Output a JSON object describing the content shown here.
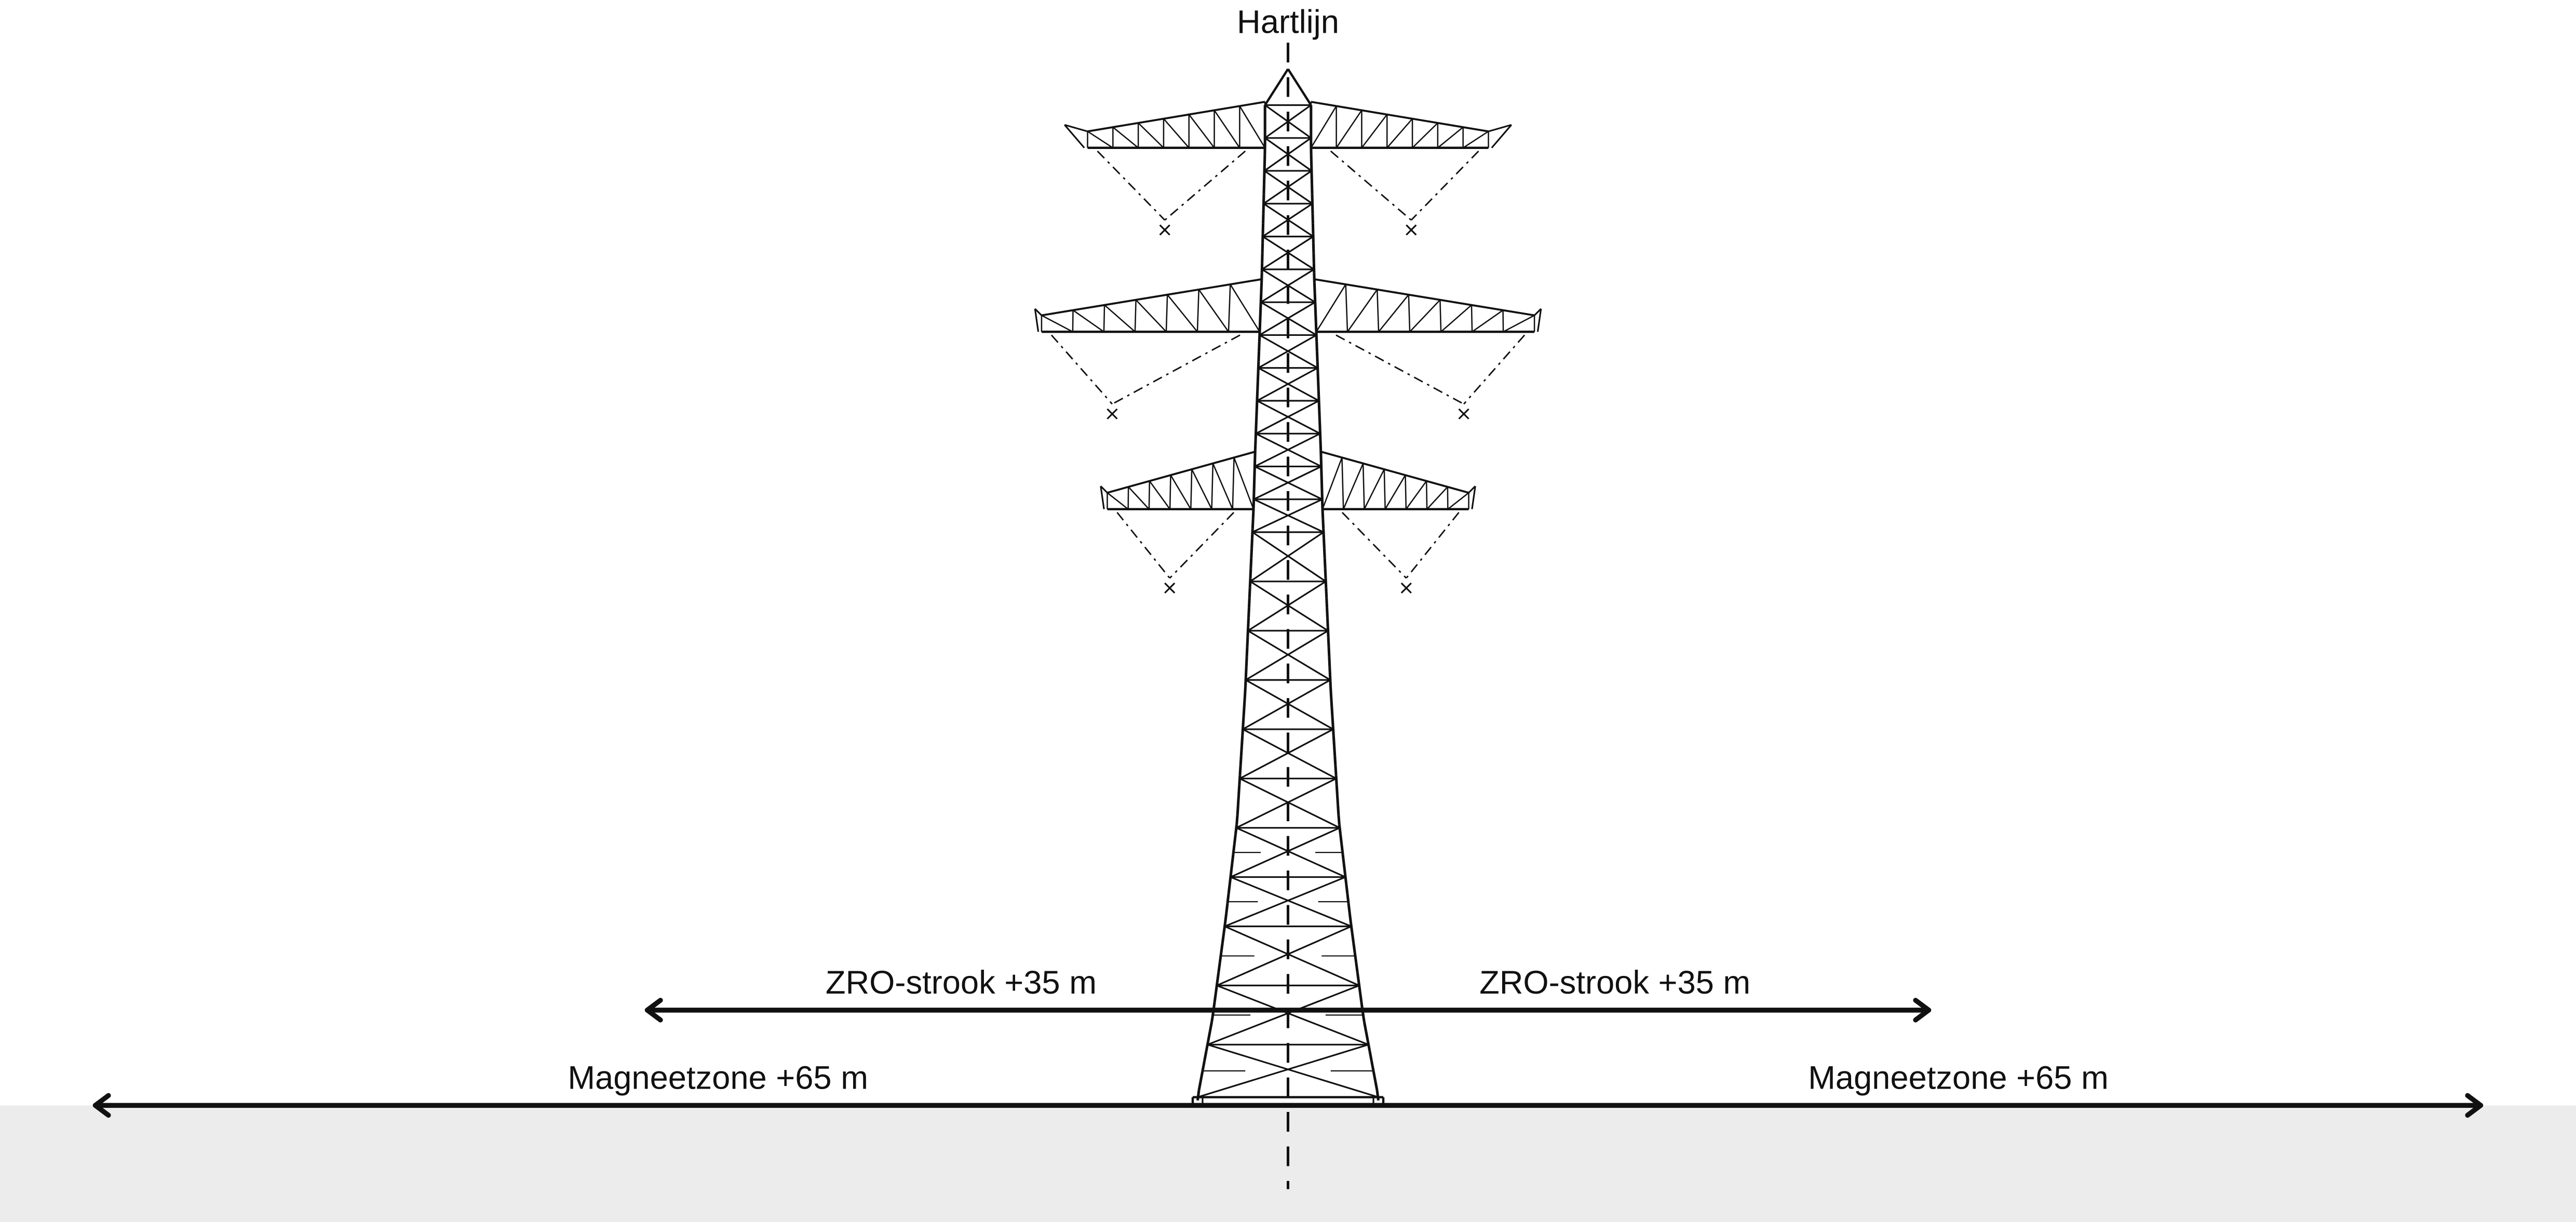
{
  "centerline_label": "Hartlijn",
  "zro_left_label": "ZRO-strook +35 m",
  "zro_right_label": "ZRO-strook +35 m",
  "magnet_left_label": "Magneetzone +65 m",
  "magnet_right_label": "Magneetzone +65 m",
  "colors": {
    "ground": "#ececec",
    "ink": "#111111",
    "background": "#ffffff"
  }
}
